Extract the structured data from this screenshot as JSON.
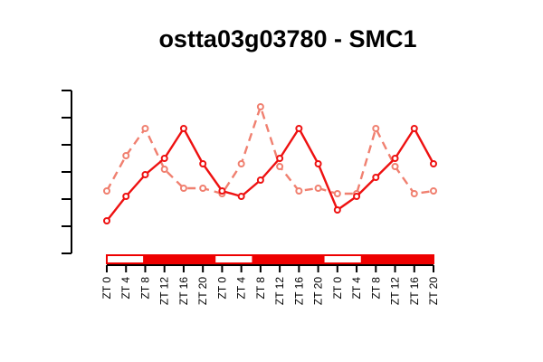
{
  "chart_data": {
    "type": "line",
    "title": "ostta03g03780 - SMC1",
    "xlabel": "",
    "ylabel": "",
    "categories": [
      "ZT 0",
      "ZT 4",
      "ZT 8",
      "ZT 12",
      "ZT 16",
      "ZT 20",
      "ZT 0",
      "ZT 4",
      "ZT 8",
      "ZT 12",
      "ZT 16",
      "ZT 20",
      "ZT 0",
      "ZT 4",
      "ZT 8",
      "ZT 12",
      "ZT 16",
      "ZT 20"
    ],
    "ylim": [
      0,
      6
    ],
    "y_ticks": [
      0,
      1,
      2,
      3,
      4,
      5,
      6
    ],
    "y_tick_labels_shown": false,
    "grid": false,
    "legend": "none",
    "series": [
      {
        "style": "solid",
        "color": "#ee1111",
        "values": [
          1.2,
          2.1,
          2.9,
          3.5,
          4.6,
          3.3,
          2.3,
          2.1,
          2.7,
          3.5,
          4.6,
          3.3,
          1.6,
          2.1,
          2.8,
          3.5,
          4.6,
          3.3
        ]
      },
      {
        "style": "dashed",
        "color": "#f08070",
        "values": [
          2.3,
          3.6,
          4.6,
          3.1,
          2.4,
          2.4,
          2.2,
          3.3,
          5.4,
          3.2,
          2.3,
          2.4,
          2.2,
          2.2,
          4.6,
          3.2,
          2.2,
          2.3
        ]
      }
    ],
    "light_bar": [
      {
        "state": "light",
        "from": 0,
        "to": 1
      },
      {
        "state": "dark",
        "from": 1,
        "to": 3
      },
      {
        "state": "light",
        "from": 3,
        "to": 4
      },
      {
        "state": "dark",
        "from": 4,
        "to": 6
      },
      {
        "state": "light",
        "from": 6,
        "to": 7
      },
      {
        "state": "dark",
        "from": 7,
        "to": 9
      }
    ],
    "light_bar_colors": {
      "light": "#ffffff",
      "dark": "#ee0000",
      "border": "#ee0000"
    }
  }
}
